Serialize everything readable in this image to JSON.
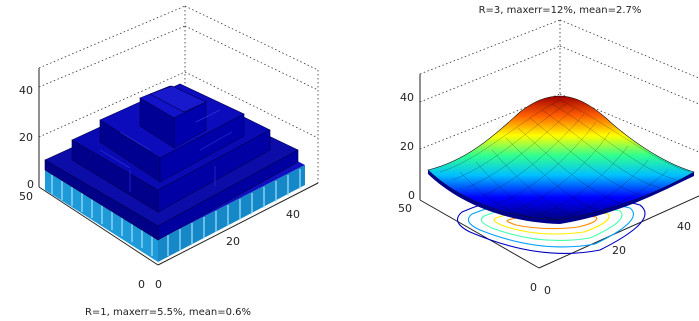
{
  "figure": {
    "left_title": "R=1, maxerr=5.5%, mean=0.6%",
    "right_title": "R=3, maxerr=12%, mean=2.7%"
  },
  "chart_data": [
    {
      "type": "surface",
      "style": "stepped 3D bar surface (pyramid of blocks)",
      "title": "R=1, maxerr=5.5%, mean=0.6%",
      "colormap": "jet",
      "x_ticks": [
        "0",
        "20",
        "40"
      ],
      "y_ticks": [
        "0",
        "50"
      ],
      "z_ticks": [
        "0",
        "20",
        "40"
      ],
      "xlim": [
        0,
        50
      ],
      "ylim": [
        0,
        50
      ],
      "zlim": [
        0,
        45
      ],
      "grid": true,
      "step_levels": [
        8,
        18,
        28,
        38
      ],
      "peak_z": 38
    },
    {
      "type": "surface",
      "style": "smooth 3D surface with contour lines projected on the base",
      "title": "R=3, maxerr=12%, mean=2.7%",
      "colormap": "jet",
      "x_ticks": [
        "0",
        "20",
        "40"
      ],
      "y_ticks": [
        "0",
        "50"
      ],
      "z_ticks": [
        "0",
        "20",
        "40"
      ],
      "xlim": [
        0,
        50
      ],
      "ylim": [
        0,
        50
      ],
      "zlim": [
        0,
        45
      ],
      "grid": true,
      "peak_z": 40
    }
  ]
}
